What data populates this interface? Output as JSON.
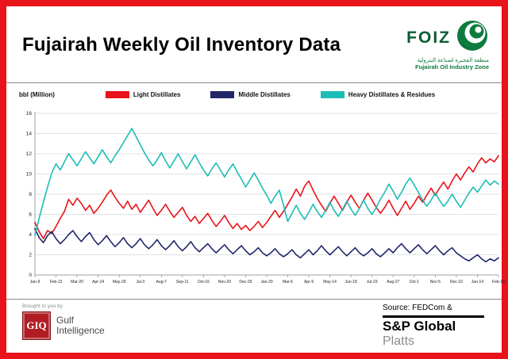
{
  "page": {
    "title": "Fujairah Weekly Oil Inventory Data"
  },
  "foiz": {
    "acronym": "FOIZ",
    "subtitle_ar": "منطقة الفجيرة لصناعة البترولية",
    "subtitle_en": "Fujairah Oil Industry Zone"
  },
  "footer": {
    "brought_by": "Brought to you by",
    "giq_acronym": "GIQ",
    "giq_line1": "Gulf",
    "giq_line2": "Intelligence",
    "source_line": "Source: FEDCom &",
    "sp_global": "S&P Global",
    "platts": "Platts"
  },
  "chart_data": {
    "type": "line",
    "title": "Fujairah Weekly Oil Inventory Data",
    "xlabel": "",
    "ylabel": "bbl (Million)",
    "ylim": [
      0,
      16
    ],
    "yticks": [
      0,
      2,
      4,
      6,
      8,
      10,
      12,
      14,
      16
    ],
    "grid": true,
    "legend_position": "top",
    "x_tick_every": 5,
    "x_tick_labels": [
      "Jan-9",
      "Feb-13",
      "Mar-20",
      "Apr-24",
      "May-29",
      "Jul-3",
      "Aug-7",
      "Sep-11",
      "Oct-16",
      "Nov-20",
      "Dec-25",
      "Jan-29",
      "Mar-5",
      "Apr-9",
      "May-14",
      "Jun-18",
      "Jul-23",
      "Aug-27",
      "Oct-1",
      "Nov-5",
      "Dec-10",
      "Jan-14",
      "Feb-18"
    ],
    "series": [
      {
        "name": "Light Distillates",
        "color": "#e8131b",
        "values": [
          5.2,
          4.3,
          3.6,
          4.4,
          4.1,
          4.8,
          5.6,
          6.3,
          7.5,
          6.9,
          7.6,
          7.1,
          6.4,
          6.9,
          6.1,
          6.6,
          7.2,
          7.9,
          8.4,
          7.7,
          7.1,
          6.6,
          7.3,
          6.5,
          7.0,
          6.2,
          6.8,
          7.4,
          6.6,
          5.9,
          6.4,
          7.0,
          6.3,
          5.7,
          6.2,
          6.7,
          5.9,
          5.3,
          5.8,
          5.1,
          5.6,
          6.1,
          5.4,
          4.8,
          5.3,
          5.9,
          5.2,
          4.6,
          5.1,
          4.5,
          4.9,
          4.4,
          4.8,
          5.3,
          4.7,
          5.2,
          5.8,
          6.4,
          5.7,
          6.3,
          7.0,
          7.7,
          8.5,
          7.8,
          8.8,
          9.3,
          8.4,
          7.6,
          6.9,
          6.3,
          7.1,
          7.8,
          7.1,
          6.4,
          7.2,
          7.9,
          7.2,
          6.6,
          7.4,
          8.1,
          7.4,
          6.7,
          6.1,
          6.7,
          7.4,
          6.6,
          5.9,
          6.6,
          7.3,
          6.5,
          7.1,
          7.8,
          7.2,
          7.9,
          8.6,
          7.9,
          8.6,
          9.2,
          8.5,
          9.3,
          10.0,
          9.4,
          10.1,
          10.7,
          10.2,
          11.0,
          11.6,
          11.1,
          11.5,
          11.2,
          11.8
        ]
      },
      {
        "name": "Middle Distillates",
        "color": "#22276b",
        "values": [
          4.6,
          3.7,
          3.2,
          3.9,
          4.3,
          3.6,
          3.1,
          3.5,
          4.0,
          4.4,
          3.8,
          3.3,
          3.8,
          4.2,
          3.5,
          3.0,
          3.4,
          3.9,
          3.3,
          2.8,
          3.2,
          3.7,
          3.1,
          2.7,
          3.1,
          3.6,
          3.0,
          2.6,
          3.0,
          3.5,
          2.9,
          2.5,
          2.9,
          3.4,
          2.8,
          2.4,
          2.8,
          3.3,
          2.7,
          2.3,
          2.7,
          3.1,
          2.6,
          2.2,
          2.6,
          3.0,
          2.5,
          2.1,
          2.5,
          2.9,
          2.4,
          2.0,
          2.3,
          2.7,
          2.2,
          1.9,
          2.2,
          2.6,
          2.1,
          1.8,
          2.1,
          2.5,
          2.0,
          1.7,
          2.1,
          2.5,
          2.0,
          2.4,
          2.9,
          2.4,
          2.0,
          2.4,
          2.8,
          2.3,
          1.9,
          2.3,
          2.7,
          2.2,
          1.9,
          2.2,
          2.6,
          2.1,
          1.8,
          2.2,
          2.6,
          2.2,
          2.7,
          3.1,
          2.6,
          2.2,
          2.6,
          3.0,
          2.5,
          2.1,
          2.5,
          2.9,
          2.4,
          2.0,
          2.4,
          2.7,
          2.2,
          1.9,
          1.6,
          1.4,
          1.7,
          2.0,
          1.6,
          1.3,
          1.6,
          1.4,
          1.7
        ]
      },
      {
        "name": "Heavy Distillates & Residues",
        "color": "#1cbdb6",
        "values": [
          3.9,
          5.6,
          7.2,
          8.7,
          10.1,
          11.0,
          10.4,
          11.2,
          12.0,
          11.4,
          10.8,
          11.5,
          12.2,
          11.6,
          11.0,
          11.7,
          12.4,
          11.7,
          11.1,
          11.8,
          12.4,
          13.1,
          13.8,
          14.5,
          13.7,
          12.9,
          12.1,
          11.4,
          10.8,
          11.4,
          12.1,
          11.3,
          10.6,
          11.3,
          12.0,
          11.2,
          10.5,
          11.2,
          11.9,
          11.1,
          10.4,
          9.8,
          10.5,
          11.1,
          10.4,
          9.7,
          10.4,
          11.0,
          10.2,
          9.5,
          8.7,
          9.4,
          10.1,
          9.4,
          8.6,
          7.9,
          7.1,
          7.8,
          8.4,
          6.9,
          5.3,
          6.1,
          6.9,
          6.1,
          5.5,
          6.2,
          7.0,
          6.3,
          5.7,
          6.4,
          7.2,
          6.4,
          5.8,
          6.5,
          7.3,
          6.5,
          5.9,
          6.6,
          7.4,
          6.6,
          6.0,
          6.7,
          7.5,
          8.2,
          9.0,
          8.3,
          7.5,
          8.2,
          9.0,
          9.6,
          8.9,
          8.2,
          7.4,
          6.8,
          7.4,
          8.1,
          7.4,
          6.8,
          7.3,
          8.0,
          7.3,
          6.7,
          7.4,
          8.1,
          8.7,
          8.2,
          8.8,
          9.4,
          8.9,
          9.3,
          9.0
        ]
      }
    ]
  }
}
